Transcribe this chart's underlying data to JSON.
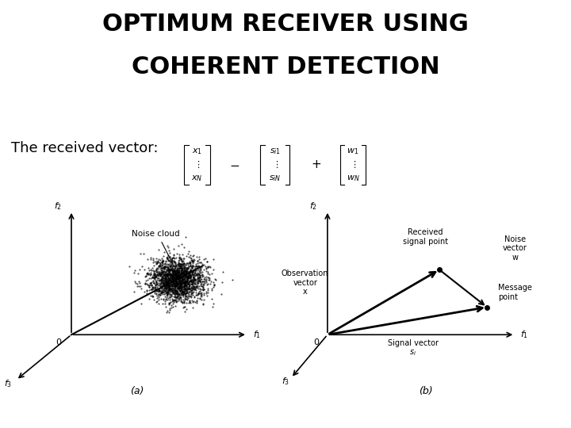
{
  "title_line1": "OPTIMUM RECEIVER USING",
  "title_line2": "COHERENT DETECTION",
  "title_fontsize": 22,
  "title_fontweight": "bold",
  "subtitle": "The received vector:",
  "subtitle_fontsize": 13,
  "bg_color": "#ffffff",
  "text_color": "#000000",
  "fig_width": 7.2,
  "fig_height": 5.4,
  "noise_cloud_n": 2000,
  "panel_a_label": "(a)",
  "panel_b_label": "(b)"
}
